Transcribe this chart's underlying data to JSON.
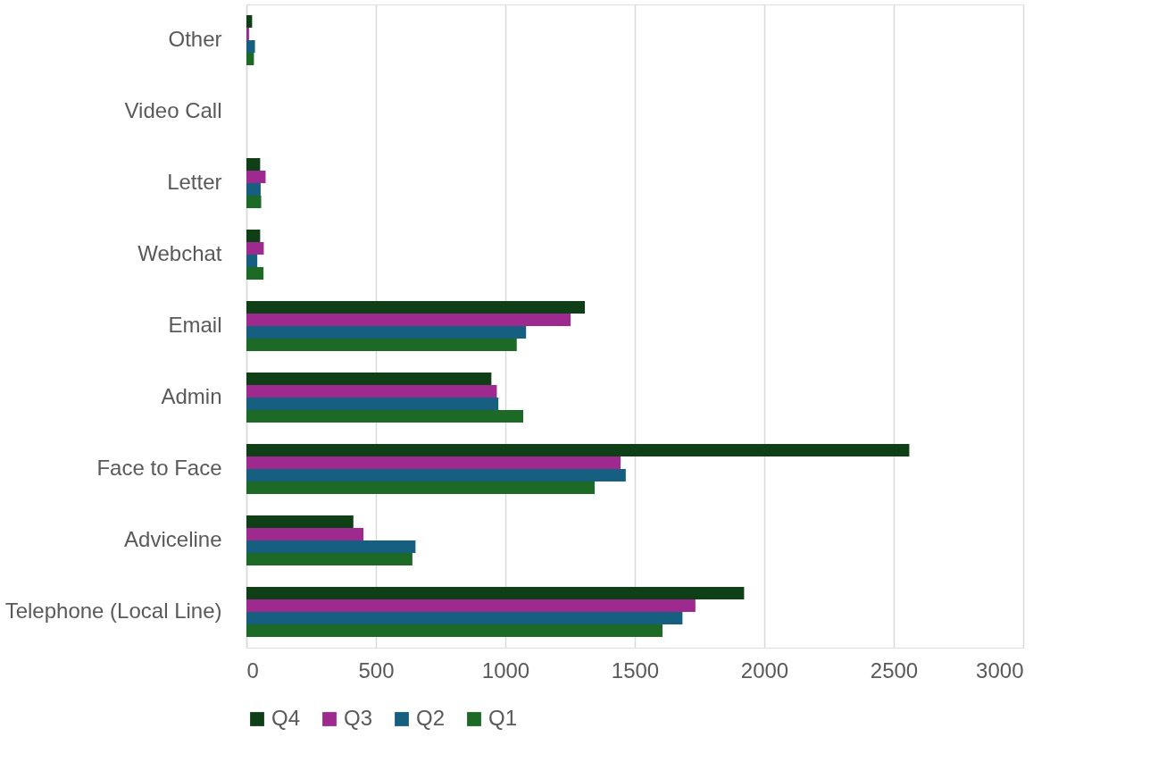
{
  "chart_data": {
    "type": "bar",
    "orientation": "horizontal",
    "categories": [
      "Other",
      "Video Call",
      "Letter",
      "Webchat",
      "Email",
      "Admin",
      "Face to Face",
      "Adviceline",
      "Telephone (Local Line)"
    ],
    "series": [
      {
        "name": "Q4",
        "color": "#0f3f17",
        "values": [
          22,
          0,
          53,
          53,
          1307,
          946,
          2560,
          413,
          1922
        ]
      },
      {
        "name": "Q3",
        "color": "#9e2a8f",
        "values": [
          10,
          0,
          74,
          67,
          1252,
          967,
          1445,
          452,
          1734
        ]
      },
      {
        "name": "Q2",
        "color": "#175f80",
        "values": [
          33,
          0,
          55,
          42,
          1080,
          973,
          1465,
          653,
          1684
        ]
      },
      {
        "name": "Q1",
        "color": "#1d6a26",
        "values": [
          29,
          0,
          57,
          66,
          1044,
          1069,
          1345,
          641,
          1607
        ]
      }
    ],
    "xlim": [
      0,
      3000
    ],
    "xticks": [
      0,
      500,
      1000,
      1500,
      2000,
      2500,
      3000
    ],
    "grid": "x",
    "legend": "bottom"
  }
}
